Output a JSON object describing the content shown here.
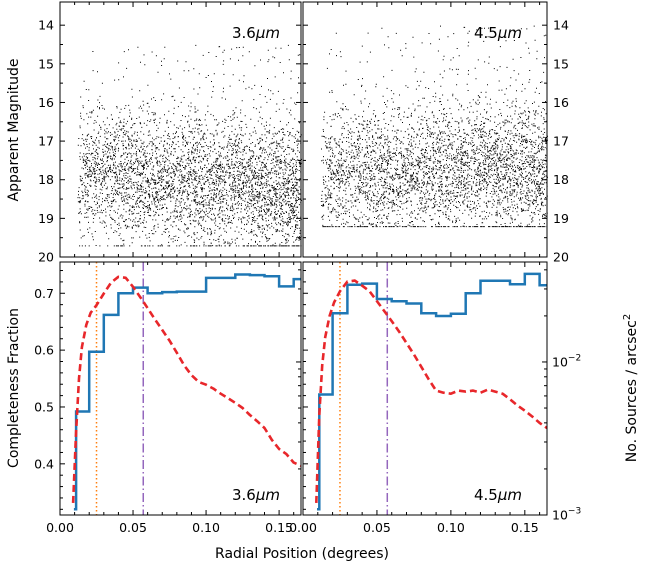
{
  "chart_data": [
    {
      "type": "scatter",
      "panel": "top-left",
      "label_text": "3.6",
      "label_unit": "μm",
      "ylabel": "Apparent Magnitude",
      "ylim": [
        20,
        13.4
      ],
      "xlim": [
        0.0,
        0.165
      ],
      "yticks": [
        "14",
        "15",
        "16",
        "17",
        "18",
        "19",
        "20"
      ],
      "density": {
        "x_start": 0.012,
        "x_end": 0.165,
        "n_points": 9500,
        "peak_mag_near_center": 17.8,
        "peak_mag_outer": 18.3,
        "bright_limit": 14.5,
        "faint_limit": 19.7
      }
    },
    {
      "type": "scatter",
      "panel": "top-right",
      "label_text": "4.5",
      "label_unit": "μm",
      "ylim": [
        20,
        13.4
      ],
      "xlim": [
        0.0,
        0.165
      ],
      "yticks": [
        "14",
        "15",
        "16",
        "17",
        "18",
        "19",
        "20"
      ],
      "density": {
        "x_start": 0.012,
        "x_end": 0.165,
        "n_points": 9000,
        "peak_mag_near_center": 17.9,
        "peak_mag_outer": 17.7,
        "bright_limit": 14.0,
        "faint_limit": 19.2
      }
    },
    {
      "type": "line",
      "panel": "bottom-left",
      "label_text": "3.6",
      "label_unit": "μm",
      "ylabel_left": "Completeness Fraction",
      "ylim_left": [
        0.31,
        0.755
      ],
      "yticks_left": [
        "0.4",
        "0.5",
        "0.6",
        "0.7"
      ],
      "xlim": [
        0.0,
        0.165
      ],
      "xticks": [
        "0.00",
        "0.05",
        "0.10",
        "0.15"
      ],
      "ylim_right_log": [
        0.001,
        0.045
      ],
      "series": [
        {
          "name": "completeness",
          "style": "step",
          "color": "#1f77b4",
          "x": [
            0.0095,
            0.011,
            0.02,
            0.03,
            0.04,
            0.05,
            0.06,
            0.07,
            0.08,
            0.09,
            0.1,
            0.11,
            0.12,
            0.13,
            0.14,
            0.15,
            0.16,
            0.165
          ],
          "y": [
            0.32,
            0.492,
            0.597,
            0.662,
            0.7,
            0.71,
            0.7,
            0.702,
            0.703,
            0.703,
            0.727,
            0.727,
            0.733,
            0.732,
            0.73,
            0.712,
            0.725,
            0.725
          ]
        },
        {
          "name": "source density",
          "style": "dashed",
          "color": "#e8272b",
          "x": [
            0.009,
            0.011,
            0.013,
            0.015,
            0.018,
            0.021,
            0.025,
            0.03,
            0.035,
            0.04,
            0.045,
            0.05,
            0.055,
            0.06,
            0.065,
            0.07,
            0.075,
            0.08,
            0.085,
            0.09,
            0.095,
            0.1,
            0.105,
            0.11,
            0.115,
            0.12,
            0.125,
            0.13,
            0.135,
            0.14,
            0.145,
            0.15,
            0.155,
            0.16,
            0.165
          ],
          "y": [
            0.0012,
            0.0035,
            0.0078,
            0.0125,
            0.0175,
            0.021,
            0.0235,
            0.028,
            0.033,
            0.036,
            0.0355,
            0.031,
            0.0265,
            0.0225,
            0.019,
            0.0162,
            0.0138,
            0.0115,
            0.0095,
            0.0082,
            0.0074,
            0.0071,
            0.0067,
            0.0062,
            0.0058,
            0.0054,
            0.005,
            0.0045,
            0.0041,
            0.0037,
            0.0031,
            0.0027,
            0.0025,
            0.0022,
            0.0021
          ]
        }
      ],
      "vlines": [
        {
          "x": 0.025,
          "style": "dotted",
          "color": "#ff7f0e"
        },
        {
          "x": 0.057,
          "style": "dashdot",
          "color": "#9467bd"
        }
      ]
    },
    {
      "type": "line",
      "panel": "bottom-right",
      "label_text": "4.5",
      "label_unit": "μm",
      "ylabel_right": "No. Sources / arcsec",
      "ylabel_right_sup": "2",
      "ylim_right_log": [
        0.001,
        0.045
      ],
      "yticks_right_base": "10",
      "yticks_right_exp": [
        "−2",
        "−3"
      ],
      "ylim_left": [
        0.31,
        0.755
      ],
      "xlim": [
        0.0,
        0.165
      ],
      "xticks": [
        "0.00",
        "0.05",
        "0.10",
        "0.15"
      ],
      "series": [
        {
          "name": "completeness",
          "style": "step",
          "color": "#1f77b4",
          "x": [
            0.0095,
            0.011,
            0.02,
            0.03,
            0.04,
            0.05,
            0.06,
            0.07,
            0.08,
            0.09,
            0.1,
            0.11,
            0.12,
            0.13,
            0.14,
            0.15,
            0.16,
            0.165
          ],
          "y": [
            0.32,
            0.522,
            0.665,
            0.715,
            0.717,
            0.69,
            0.686,
            0.682,
            0.665,
            0.66,
            0.664,
            0.7,
            0.722,
            0.722,
            0.716,
            0.734,
            0.714,
            0.714
          ]
        },
        {
          "name": "source density",
          "style": "dashed",
          "color": "#e8272b",
          "x": [
            0.009,
            0.011,
            0.013,
            0.015,
            0.018,
            0.021,
            0.025,
            0.03,
            0.035,
            0.04,
            0.045,
            0.05,
            0.055,
            0.06,
            0.065,
            0.07,
            0.075,
            0.08,
            0.085,
            0.09,
            0.095,
            0.1,
            0.105,
            0.11,
            0.115,
            0.12,
            0.125,
            0.13,
            0.135,
            0.14,
            0.145,
            0.15,
            0.155,
            0.16,
            0.165
          ],
          "y": [
            0.0012,
            0.0045,
            0.0095,
            0.0145,
            0.02,
            0.0245,
            0.029,
            0.0335,
            0.034,
            0.0315,
            0.029,
            0.025,
            0.0215,
            0.0185,
            0.0158,
            0.0133,
            0.0112,
            0.0093,
            0.0077,
            0.0065,
            0.0063,
            0.0062,
            0.0065,
            0.0064,
            0.0065,
            0.0063,
            0.0066,
            0.0064,
            0.0062,
            0.0057,
            0.0052,
            0.0048,
            0.0044,
            0.004,
            0.0037
          ]
        }
      ],
      "vlines": [
        {
          "x": 0.025,
          "style": "dotted",
          "color": "#ff7f0e"
        },
        {
          "x": 0.057,
          "style": "dashdot",
          "color": "#9467bd"
        }
      ]
    }
  ],
  "xlabel": "Radial Position (degrees)"
}
